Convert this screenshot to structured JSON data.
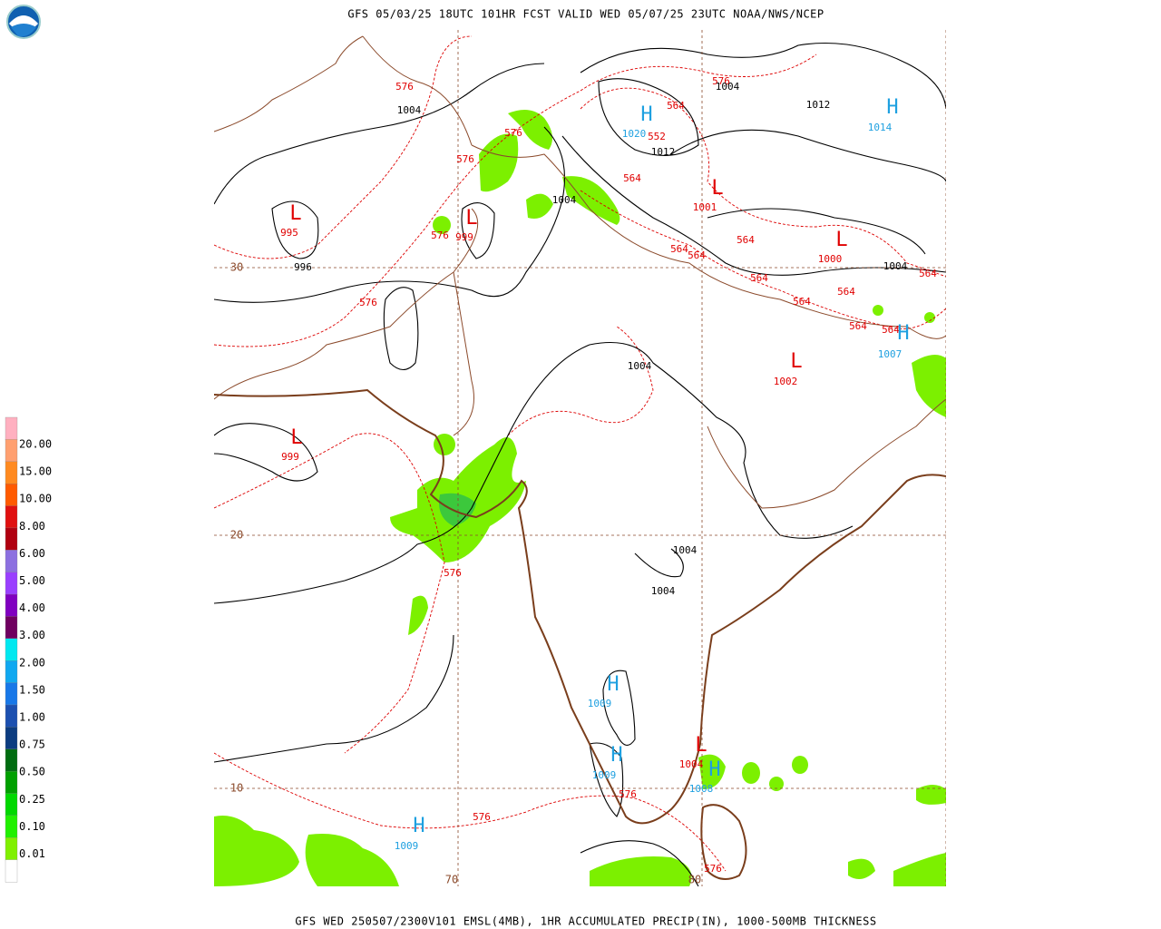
{
  "header": {
    "title": "GFS 05/03/25 18UTC 101HR FCST VALID WED 05/07/25 23UTC NOAA/NWS/NCEP"
  },
  "footer": {
    "caption": "GFS WED 250507/2300V101 EMSL(4MB), 1HR ACCUMULATED PRECIP(IN), 1000-500MB THICKNESS"
  },
  "legend": {
    "labels": [
      "20.00",
      "15.00",
      "10.00",
      "8.00",
      "6.00",
      "5.00",
      "4.00",
      "3.00",
      "2.00",
      "1.50",
      "1.00",
      "0.75",
      "0.50",
      "0.25",
      "0.10",
      "0.01"
    ],
    "colors": [
      "#ffb0c0",
      "#ffa070",
      "#ff8a20",
      "#ff5a00",
      "#e01010",
      "#b00010",
      "#8c70e0",
      "#9a40ff",
      "#8000c0",
      "#700060",
      "#00e8f0",
      "#10a8f0",
      "#1878e8",
      "#1c50b0",
      "#0c3c80",
      "#006c10",
      "#00a000",
      "#00d800",
      "#20f000",
      "#80f000",
      "#ffffff"
    ]
  },
  "map": {
    "labels": [
      "576",
      "1004",
      "576",
      "576",
      "L",
      "995",
      "576",
      "L",
      "999",
      "996",
      "576",
      "1004",
      "H",
      "1020",
      "564",
      "552",
      "1012",
      "564",
      "576",
      "1004",
      "1012",
      "H",
      "1014",
      "L",
      "1001",
      "564",
      "564",
      "564",
      "L",
      "1000",
      "1004",
      "564",
      "564",
      "564",
      "564",
      "564",
      "564",
      "H",
      "1007",
      "L",
      "1002",
      "1004",
      "L",
      "999",
      "576",
      "1004",
      "1004",
      "H",
      "1009",
      "H",
      "1009",
      "L",
      "1004",
      "H",
      "1008",
      "576",
      "H",
      "1009",
      "576",
      "576"
    ],
    "grid_labels": [
      "30",
      "20",
      "10",
      "70",
      "80"
    ]
  }
}
